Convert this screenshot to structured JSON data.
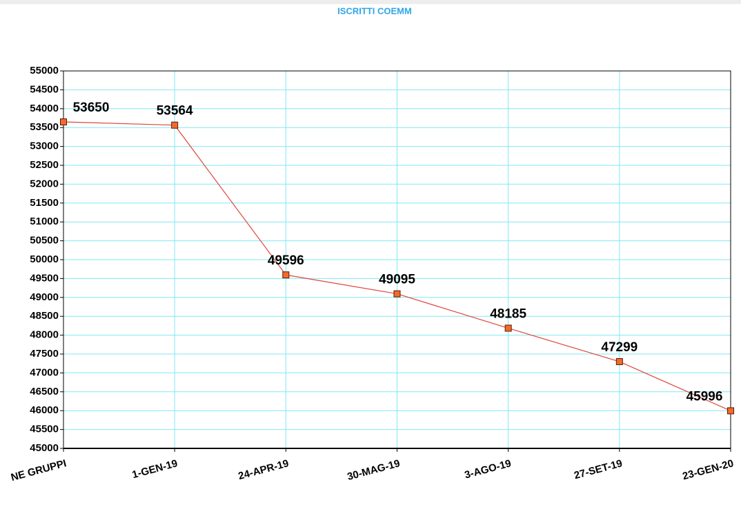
{
  "chart_data": {
    "type": "line",
    "title": "ISCRITTI COEMM",
    "categories": [
      "NE GRUPPI",
      "1-GEN-19",
      "24-APR-19",
      "30-MAG-19",
      "3-AGO-19",
      "27-SET-19",
      "23-GEN-20"
    ],
    "series": [
      {
        "name": "ISCRITTI",
        "color": "#e0463c",
        "values": [
          53650,
          53564,
          49596,
          49095,
          48185,
          47299,
          45996
        ]
      }
    ],
    "ylim": [
      45000,
      55000
    ],
    "yticks": [
      45000,
      45500,
      46000,
      46500,
      47000,
      47500,
      48000,
      48500,
      49000,
      49500,
      50000,
      50500,
      51000,
      51500,
      52000,
      52500,
      53000,
      53500,
      54000,
      54500,
      55000
    ],
    "grid": true
  }
}
